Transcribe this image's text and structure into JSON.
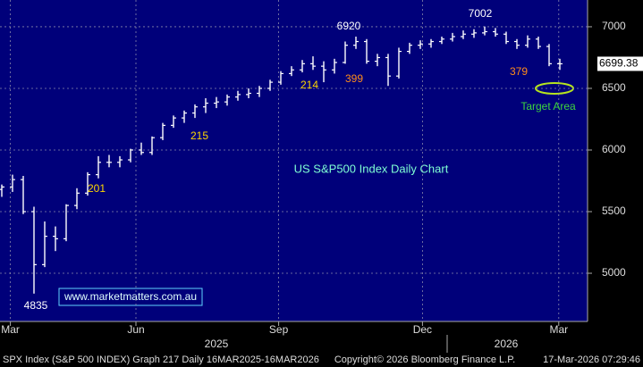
{
  "chart_data": {
    "type": "ohlc",
    "title": "US S&P500 Index Daily Chart",
    "watermark": "www.marketmatters.com.au",
    "color": "#ffffff",
    "categories": [
      null,
      null,
      null,
      null,
      null,
      null,
      null,
      null,
      null,
      null,
      null,
      null,
      null,
      null,
      null,
      null,
      null,
      null,
      null,
      null,
      null,
      null,
      null,
      null,
      null,
      null,
      null,
      null,
      null,
      null,
      null,
      null,
      null,
      null,
      null,
      null,
      null,
      null,
      null,
      null,
      null,
      null,
      null,
      null,
      null,
      null,
      null,
      null,
      null,
      null,
      null,
      null,
      null
    ],
    "open": [
      5680,
      5700,
      5760,
      5500,
      5070,
      5300,
      5280,
      5550,
      5650,
      5800,
      5900,
      5900,
      5920,
      6000,
      5980,
      6100,
      6200,
      6260,
      6300,
      6350,
      6380,
      6390,
      6430,
      6450,
      6460,
      6500,
      6550,
      6620,
      6650,
      6700,
      6680,
      6650,
      6710,
      6850,
      6880,
      6720,
      6750,
      6600,
      6800,
      6850,
      6860,
      6880,
      6900,
      6920,
      6940,
      6950,
      6960,
      6940,
      6880,
      6850,
      6900,
      6840,
      6700
    ],
    "high": [
      5720,
      5800,
      5790,
      5540,
      5420,
      5380,
      5560,
      5690,
      5820,
      5950,
      5960,
      5950,
      6010,
      6060,
      6110,
      6220,
      6280,
      6320,
      6370,
      6420,
      6430,
      6450,
      6480,
      6500,
      6520,
      6570,
      6640,
      6680,
      6730,
      6760,
      6720,
      6740,
      6880,
      6920,
      6900,
      6780,
      6780,
      6830,
      6870,
      6890,
      6900,
      6920,
      6950,
      6970,
      6980,
      7002,
      6990,
      6960,
      6900,
      6930,
      6920,
      6860,
      6740
    ],
    "low": [
      5620,
      5660,
      5480,
      4835,
      5050,
      5180,
      5260,
      5520,
      5630,
      5770,
      5860,
      5860,
      5900,
      5960,
      5960,
      6080,
      6180,
      6220,
      6260,
      6300,
      6340,
      6360,
      6400,
      6420,
      6430,
      6480,
      6530,
      6600,
      6630,
      6650,
      6550,
      6620,
      6700,
      6820,
      6700,
      6680,
      6520,
      6580,
      6780,
      6820,
      6830,
      6860,
      6880,
      6900,
      6910,
      6930,
      6920,
      6860,
      6820,
      6830,
      6820,
      6680,
      6650
    ],
    "close": [
      5700,
      5760,
      5500,
      5070,
      5300,
      5280,
      5550,
      5650,
      5800,
      5900,
      5900,
      5920,
      6000,
      5980,
      6100,
      6200,
      6260,
      6300,
      6350,
      6380,
      6390,
      6430,
      6450,
      6460,
      6500,
      6550,
      6620,
      6650,
      6700,
      6680,
      6650,
      6710,
      6850,
      6880,
      6720,
      6750,
      6600,
      6800,
      6850,
      6860,
      6880,
      6900,
      6920,
      6940,
      6950,
      6960,
      6940,
      6880,
      6850,
      6900,
      6840,
      6700,
      6699.38
    ],
    "ylim": [
      4609,
      7217
    ],
    "yticks": [
      5000,
      5500,
      6000,
      6500,
      7000
    ],
    "xticks": [
      {
        "value": 0.8,
        "label": "Mar"
      },
      {
        "value": 12.5,
        "label": "Jun"
      },
      {
        "value": 25.8,
        "label": "Sep"
      },
      {
        "value": 39.2,
        "label": "Dec"
      },
      {
        "value": 51.9,
        "label": "Mar"
      }
    ],
    "years": [
      {
        "value": 20,
        "label": "2025"
      },
      {
        "value": 47,
        "label": "2026"
      }
    ],
    "year_divider": 41.5,
    "grid": true,
    "annotations": [
      "6920",
      "7002",
      "214",
      "399",
      "379",
      "215",
      "201",
      "4835",
      "Target Area"
    ],
    "footer": [
      "SPX Index (S&P 500 INDEX) Graph 217 Daily 16MAR2025-16MAR2026",
      "Copyright© 2026 Bloomberg Finance L.P.",
      "17-Mar-2026 07:29:46"
    ]
  }
}
